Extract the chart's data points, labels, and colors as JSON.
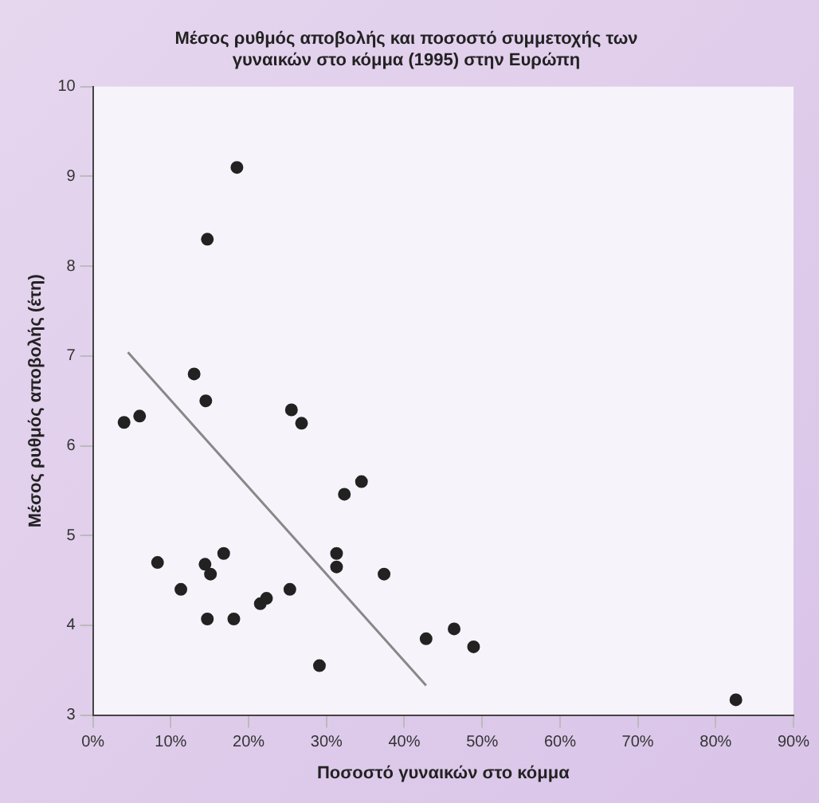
{
  "chart_data": {
    "type": "scatter",
    "title": "Μέσος ρυθμός αποβολής και ποσοστό συμμετοχής των\nγυναικών στο κόμμα (1995) στην Ευρώπη",
    "xlabel": "Ποσοστό γυναικών στο κόμμα",
    "ylabel": "Μέσος ρυθμός αποβολής (έτη)",
    "series": [
      {
        "marker": "circle",
        "color": "#222222",
        "x": [
          18.5,
          14.7,
          4.0,
          6.0,
          13.0,
          14.5,
          25.5,
          26.8,
          8.3,
          11.3,
          14.4,
          15.1,
          16.8,
          14.7,
          18.1,
          21.5,
          22.3,
          25.3,
          29.1,
          32.3,
          34.5,
          31.3,
          31.3,
          37.4,
          42.8,
          46.4,
          48.9,
          82.6
        ],
        "values": [
          9.1,
          8.3,
          6.26,
          6.33,
          6.8,
          6.5,
          6.4,
          6.25,
          4.7,
          4.4,
          4.68,
          4.57,
          4.8,
          4.07,
          4.07,
          4.24,
          4.3,
          4.4,
          3.55,
          5.46,
          5.6,
          4.8,
          4.65,
          4.57,
          3.85,
          3.96,
          3.76,
          3.17
        ]
      },
      {
        "type": "line",
        "marker": "none",
        "color": "#888888",
        "x": [
          4.5,
          42.8
        ],
        "values": [
          7.04,
          3.33
        ]
      }
    ],
    "xlim": [
      0,
      90
    ],
    "xticks": [
      {
        "value": 0,
        "label": "0%"
      },
      {
        "value": 10,
        "label": "10%"
      },
      {
        "value": 20,
        "label": "20%"
      },
      {
        "value": 30,
        "label": "30%"
      },
      {
        "value": 40,
        "label": "40%"
      },
      {
        "value": 50,
        "label": "50%"
      },
      {
        "value": 60,
        "label": "60%"
      },
      {
        "value": 70,
        "label": "70%"
      },
      {
        "value": 80,
        "label": "80%"
      },
      {
        "value": 90,
        "label": "90%"
      }
    ],
    "ylim": [
      3,
      10
    ],
    "yticks": [
      3,
      4,
      5,
      6,
      7,
      8,
      9,
      10
    ],
    "grid": false,
    "legend": false
  }
}
